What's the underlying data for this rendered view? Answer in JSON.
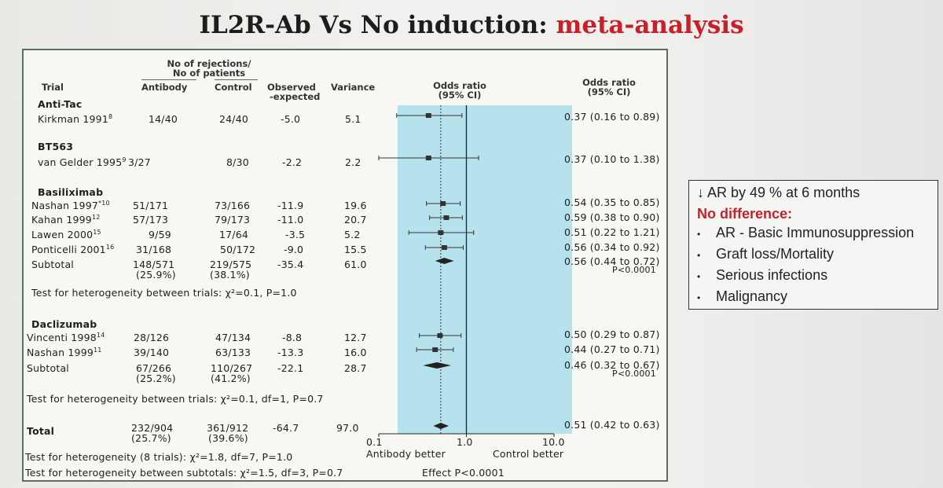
{
  "slide": {
    "title_main": "IL2R-Ab Vs No induction:",
    "title_accent": "meta-analysis"
  },
  "table": {
    "group_header_1": "No of rejections/",
    "group_header_2": "No of patients",
    "col_trial": "Trial",
    "col_antibody": "Antibody",
    "col_control": "Control",
    "col_oe_1": "Observed",
    "col_oe_2": "-expected",
    "col_variance": "Variance",
    "col_plot_1": "Odds ratio",
    "col_plot_2": "(95% CI)",
    "col_or_1": "Odds ratio",
    "col_or_2": "(95% CI)"
  },
  "rows": {
    "antitac_header": "Anti-Tac",
    "kirkman": {
      "trial": "Kirkman 1991",
      "ref": "8",
      "antibody": "14/40",
      "control": "24/40",
      "oe": "-5.0",
      "var": "5.1",
      "or": "0.37 (0.16 to 0.89)"
    },
    "bt563_header": "BT563",
    "vangelder": {
      "trial": "van Gelder 1995",
      "ref": "9",
      "antibody": "3/27",
      "control": "8/30",
      "oe": "-2.2",
      "var": "2.2",
      "or": "0.37 (0.10 to 1.38)"
    },
    "basiliximab_header": "Basiliximab",
    "nashan1997": {
      "trial": "Nashan 1997",
      "ref": "*10",
      "antibody": "51/171",
      "control": "73/166",
      "oe": "-11.9",
      "var": "19.6",
      "or": "0.54 (0.35 to 0.85)"
    },
    "kahan1999": {
      "trial": "Kahan 1999",
      "ref": "12",
      "antibody": "57/173",
      "control": "79/173",
      "oe": "-11.0",
      "var": "20.7",
      "or": "0.59 (0.38 to 0.90)"
    },
    "lawen2000": {
      "trial": "Lawen 2000",
      "ref": "15",
      "antibody": "9/59",
      "control": "17/64",
      "oe": "-3.5",
      "var": "5.2",
      "or": "0.51 (0.22 to 1.21)"
    },
    "ponticelli2001": {
      "trial": "Ponticelli 2001",
      "ref": "16",
      "antibody": "31/168",
      "control": "50/172",
      "oe": "-9.0",
      "var": "15.5",
      "or": "0.56 (0.34 to 0.92)"
    },
    "basil_subtotal": {
      "trial": "Subtotal",
      "antibody": "148/571",
      "antibody_pct": "(25.9%)",
      "control": "219/575",
      "control_pct": "(38.1%)",
      "oe": "-35.4",
      "var": "61.0",
      "or": "0.56 (0.44 to 0.72)",
      "p": "P<0.0001"
    },
    "basil_het": "Test for heterogeneity between trials: χ²=0.1, P=1.0",
    "daclizumab_header": "Daclizumab",
    "vincenti1998": {
      "trial": "Vincenti 1998",
      "ref": "14",
      "antibody": "28/126",
      "control": "47/134",
      "oe": "-8.8",
      "var": "12.7",
      "or": "0.50 (0.29 to 0.87)"
    },
    "nashan1999": {
      "trial": "Nashan 1999",
      "ref": "11",
      "antibody": "39/140",
      "control": "63/133",
      "oe": "-13.3",
      "var": "16.0",
      "or": "0.44 (0.27 to 0.71)"
    },
    "dacl_subtotal": {
      "trial": "Subtotal",
      "antibody": "67/266",
      "antibody_pct": "(25.2%)",
      "control": "110/267",
      "control_pct": "(41.2%)",
      "oe": "-22.1",
      "var": "28.7",
      "or": "0.46 (0.32 to 0.67)",
      "p": "P<0.0001"
    },
    "dacl_het": "Test for heterogeneity between trials: χ²=0.1, df=1, P=0.7",
    "total": {
      "trial": "Total",
      "antibody": "232/904",
      "antibody_pct": "(25.7%)",
      "control": "361/912",
      "control_pct": "(39.6%)",
      "oe": "-64.7",
      "var": "97.0",
      "or": "0.51 (0.42 to 0.63)"
    }
  },
  "axis": {
    "tick_low": "0.1",
    "tick_mid": "1.0",
    "tick_high": "10.0",
    "left_label": "Antibody better",
    "right_label": "Control better",
    "effect": "Effect P<0.0001"
  },
  "footer": {
    "het_all": "Test for heterogeneity (8 trials): χ²=1.8, df=7, P=1.0",
    "het_sub": "Test for heterogeneity between subtotals: χ²=1.5, df=3, P=0.7"
  },
  "note": {
    "headline": "↓ AR by 49 % at 6 months",
    "nodiff": "No difference:",
    "items": [
      "AR - Basic Immunosuppression",
      "Graft loss/Mortality",
      "Serious infections",
      "Malignancy"
    ],
    "accent_color": "#c8202a"
  },
  "chart_data": {
    "type": "forest",
    "x_scale": "log",
    "xlim": [
      0.1,
      10.0
    ],
    "reference_line": 1.0,
    "pooled_line": 0.51,
    "studies": [
      {
        "name": "Kirkman 1991",
        "or": 0.37,
        "lo": 0.16,
        "hi": 0.89,
        "kind": "study"
      },
      {
        "name": "van Gelder 1995",
        "or": 0.37,
        "lo": 0.1,
        "hi": 1.38,
        "kind": "study"
      },
      {
        "name": "Nashan 1997",
        "or": 0.54,
        "lo": 0.35,
        "hi": 0.85,
        "kind": "study"
      },
      {
        "name": "Kahan 1999",
        "or": 0.59,
        "lo": 0.38,
        "hi": 0.9,
        "kind": "study"
      },
      {
        "name": "Lawen 2000",
        "or": 0.51,
        "lo": 0.22,
        "hi": 1.21,
        "kind": "study"
      },
      {
        "name": "Ponticelli 2001",
        "or": 0.56,
        "lo": 0.34,
        "hi": 0.92,
        "kind": "study"
      },
      {
        "name": "Subtotal",
        "or": 0.56,
        "lo": 0.44,
        "hi": 0.72,
        "kind": "subtotal"
      },
      {
        "name": "Vincenti 1998",
        "or": 0.5,
        "lo": 0.29,
        "hi": 0.87,
        "kind": "study"
      },
      {
        "name": "Nashan 1999",
        "or": 0.44,
        "lo": 0.27,
        "hi": 0.71,
        "kind": "study"
      },
      {
        "name": "Subtotal",
        "or": 0.46,
        "lo": 0.32,
        "hi": 0.67,
        "kind": "subtotal"
      },
      {
        "name": "Total",
        "or": 0.51,
        "lo": 0.42,
        "hi": 0.63,
        "kind": "total"
      }
    ]
  }
}
